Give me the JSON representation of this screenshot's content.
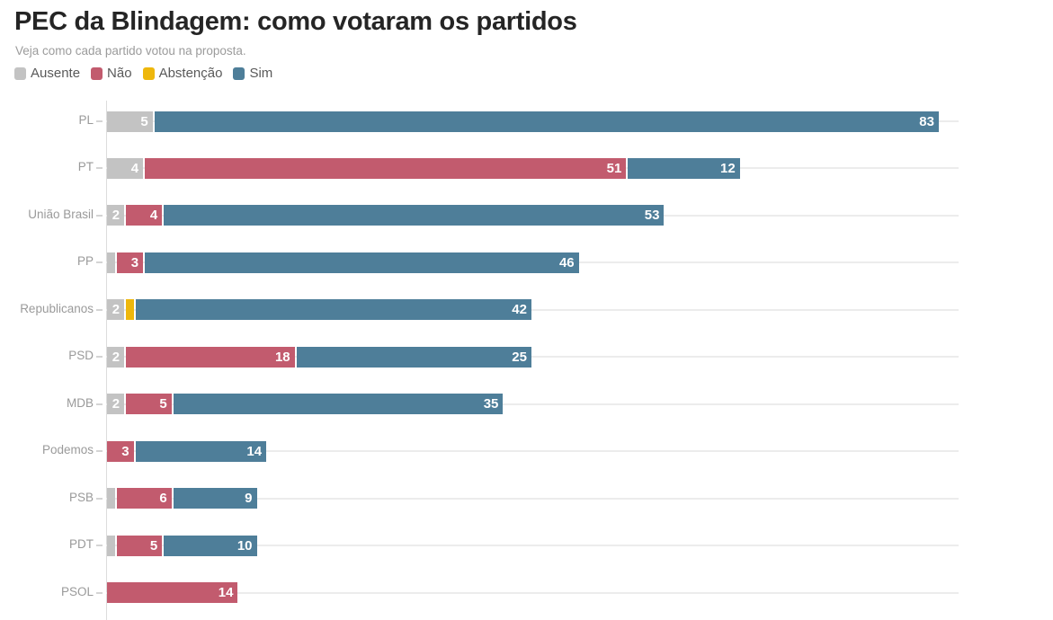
{
  "header": {
    "title": "PEC da Blindagem: como votaram os partidos",
    "subtitle": "Veja como cada partido votou na proposta."
  },
  "legend": {
    "items": [
      {
        "label": "Ausente",
        "color": "#c3c3c3"
      },
      {
        "label": "Não",
        "color": "#c25b6e"
      },
      {
        "label": "Abstenção",
        "color": "#eeb70c"
      },
      {
        "label": "Sim",
        "color": "#4e7e99"
      }
    ],
    "position": "top"
  },
  "chart_data": {
    "type": "bar",
    "orientation": "horizontal",
    "stacked": true,
    "title": "PEC da Blindagem: como votaram os partidos",
    "subtitle": "Veja como cada partido votou na proposta.",
    "grid": "row-lines",
    "xlim": [
      0,
      90
    ],
    "value_label_min": 2,
    "categories": [
      "PL",
      "PT",
      "União Brasil",
      "PP",
      "Republicanos",
      "PSD",
      "MDB",
      "Podemos",
      "PSB",
      "PDT",
      "PSOL"
    ],
    "series": [
      {
        "name": "Ausente",
        "color": "#c3c3c3",
        "values": [
          5,
          4,
          2,
          1,
          2,
          2,
          2,
          0,
          1,
          1,
          0
        ]
      },
      {
        "name": "Não",
        "color": "#c25b6e",
        "values": [
          0,
          51,
          4,
          3,
          0,
          18,
          5,
          3,
          6,
          5,
          14
        ]
      },
      {
        "name": "Abstenção",
        "color": "#eeb70c",
        "values": [
          0,
          0,
          0,
          0,
          1,
          0,
          0,
          0,
          0,
          0,
          0
        ]
      },
      {
        "name": "Sim",
        "color": "#4e7e99",
        "values": [
          83,
          12,
          53,
          46,
          42,
          25,
          35,
          14,
          9,
          10,
          0
        ]
      }
    ]
  },
  "layout_colors": {
    "title": "#252525",
    "subtitle": "#9b9b9b",
    "category_label": "#9a9a9a",
    "gridline": "#ececec",
    "axis_line": "#dcdcdc",
    "bar_value_text": "#ffffff",
    "background": "#ffffff"
  }
}
